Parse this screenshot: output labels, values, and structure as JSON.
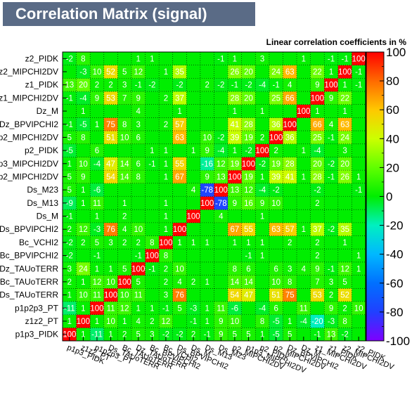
{
  "header": {
    "title": "Correlation Matrix (signal)",
    "subtitle": "Linear correlation coefficients in %"
  },
  "chart_data": {
    "type": "heatmap",
    "title": "Correlation Matrix (signal)",
    "subtitle": "Linear correlation coefficients in %",
    "variables": [
      "p1p3_PIDK",
      "z1z2_PT",
      "p1p2p3_PT",
      "Ds_TAUoTERR",
      "Bc_TAUoTERR",
      "Dz_TAUoTERR",
      "Bc_BPVIPCHI2",
      "Bc_VCHI2",
      "Ds_BPVIPCHI2",
      "Ds_M",
      "Ds_M13",
      "Ds_M23",
      "p2_MIPCHI2DV",
      "p1p3_MIPCHI2DV",
      "p2_PIDK",
      "p2_MIPCHI2DV",
      "Dz_BPVIPCHI2",
      "Dz_M",
      "z1_MIPCHI2DV",
      "z1_PIDK",
      "z2_MIPCHI2DV",
      "z2_PIDK"
    ],
    "y_tick_labels": [
      "p1p3_PIDK",
      "z1z2_PT",
      "p1p2p3_PT",
      "Ds_TAUoTERR",
      "Bc_TAUoTERR",
      "Dz_TAUoTERR",
      "Bc_BPVIPCHI2",
      "Bc_VCHI2",
      "Ds_BPVIPCHI2",
      "Ds_M",
      "Ds_M13",
      "Ds_M23",
      "p2_MIPCHI2DV",
      "p1p3_MIPCHI2DV",
      "p2_PIDK",
      "p2_MIPCHI2DV",
      "Dz_BPVIPCHI2",
      "Dz_M",
      "z1_MIPCHI2DV",
      "z1_PIDK",
      "z2_MIPCHI2DV",
      "z2_PIDK"
    ],
    "zlim": [
      -100,
      100
    ],
    "z_ticks": [
      -100,
      -80,
      -60,
      -40,
      -20,
      0,
      20,
      40,
      60,
      80,
      100
    ],
    "grid": true,
    "matrix": [
      [
        100,
        1,
        -11,
        1,
        2,
        5,
        3,
        -2,
        -2,
        2,
        -1,
        9,
        5,
        5,
        1,
        -5,
        5,
        null,
        -1,
        13,
        -2,
        null
      ],
      [
        1,
        100,
        1,
        10,
        1,
        4,
        2,
        12,
        null,
        -1,
        1,
        9,
        10,
        null,
        8,
        -5,
        1,
        -4,
        -20,
        -3,
        8,
        null
      ],
      [
        -11,
        1,
        100,
        11,
        12,
        1,
        1,
        -1,
        5,
        -3,
        1,
        11,
        -6,
        null,
        -4,
        6,
        null,
        11,
        null,
        9,
        2,
        10
      ],
      [
        1,
        10,
        11,
        100,
        10,
        11,
        null,
        3,
        76,
        null,
        null,
        null,
        54,
        47,
        null,
        51,
        75,
        null,
        53,
        2,
        52,
        null
      ],
      [
        2,
        1,
        12,
        10,
        100,
        5,
        null,
        2,
        4,
        2,
        1,
        null,
        14,
        14,
        null,
        10,
        8,
        null,
        7,
        3,
        5,
        null
      ],
      [
        3,
        24,
        1,
        1,
        5,
        100,
        -1,
        2,
        10,
        null,
        null,
        null,
        8,
        6,
        null,
        6,
        3,
        4,
        9,
        -1,
        12,
        1
      ],
      [
        -2,
        null,
        -1,
        null,
        null,
        -1,
        100,
        8,
        null,
        null,
        null,
        null,
        null,
        -1,
        1,
        null,
        null,
        null,
        2,
        null,
        null,
        1
      ],
      [
        -2,
        2,
        5,
        3,
        2,
        2,
        8,
        100,
        1,
        1,
        1,
        null,
        1,
        1,
        1,
        null,
        2,
        null,
        2,
        null,
        1,
        null
      ],
      [
        2,
        12,
        -3,
        76,
        4,
        10,
        null,
        1,
        100,
        null,
        null,
        null,
        67,
        55,
        null,
        63,
        57,
        1,
        37,
        -2,
        35,
        null
      ],
      [
        -1,
        null,
        1,
        null,
        2,
        null,
        null,
        1,
        null,
        100,
        null,
        4,
        null,
        null,
        1,
        null,
        null,
        null,
        null,
        null,
        null,
        null
      ],
      [
        -9,
        1,
        11,
        null,
        1,
        null,
        null,
        1,
        null,
        null,
        100,
        -78,
        9,
        16,
        9,
        10,
        null,
        null,
        2,
        null,
        null,
        null
      ],
      [
        5,
        1,
        -6,
        null,
        null,
        null,
        null,
        null,
        null,
        4,
        -78,
        100,
        13,
        12,
        -4,
        -2,
        null,
        null,
        -2,
        null,
        null,
        -1
      ],
      [
        5,
        9,
        null,
        54,
        14,
        8,
        null,
        1,
        67,
        null,
        9,
        13,
        100,
        19,
        1,
        39,
        41,
        1,
        28,
        -1,
        26,
        1
      ],
      [
        1,
        10,
        -4,
        47,
        14,
        6,
        -1,
        1,
        55,
        null,
        -16,
        12,
        19,
        100,
        -2,
        19,
        28,
        null,
        20,
        -2,
        20,
        null
      ],
      [
        -5,
        null,
        6,
        null,
        null,
        null,
        1,
        1,
        null,
        1,
        9,
        -4,
        1,
        -2,
        100,
        2,
        null,
        1,
        -4,
        null,
        3,
        null
      ],
      [
        5,
        8,
        null,
        51,
        10,
        6,
        null,
        null,
        63,
        null,
        10,
        -2,
        39,
        19,
        2,
        100,
        36,
        null,
        25,
        -1,
        24,
        null
      ],
      [
        -1,
        -5,
        1,
        75,
        8,
        3,
        null,
        2,
        57,
        null,
        null,
        null,
        41,
        28,
        null,
        36,
        100,
        null,
        66,
        4,
        63,
        null
      ],
      [
        null,
        1,
        null,
        null,
        null,
        4,
        null,
        null,
        1,
        null,
        null,
        null,
        1,
        null,
        1,
        null,
        null,
        100,
        1,
        null,
        1,
        null
      ],
      [
        -1,
        -4,
        9,
        53,
        7,
        9,
        null,
        2,
        37,
        null,
        null,
        null,
        28,
        20,
        null,
        25,
        66,
        null,
        100,
        9,
        22,
        null
      ],
      [
        13,
        20,
        2,
        2,
        3,
        -1,
        -2,
        null,
        -2,
        null,
        2,
        -2,
        -1,
        -2,
        -4,
        -1,
        4,
        null,
        9,
        100,
        1,
        -1
      ],
      [
        null,
        -3,
        10,
        52,
        5,
        12,
        null,
        1,
        35,
        null,
        null,
        null,
        26,
        20,
        null,
        24,
        63,
        null,
        22,
        1,
        100,
        -1
      ],
      [
        -2,
        8,
        null,
        null,
        null,
        1,
        1,
        null,
        null,
        null,
        null,
        -1,
        1,
        null,
        3,
        null,
        null,
        1,
        null,
        -1,
        -1,
        100
      ]
    ]
  }
}
